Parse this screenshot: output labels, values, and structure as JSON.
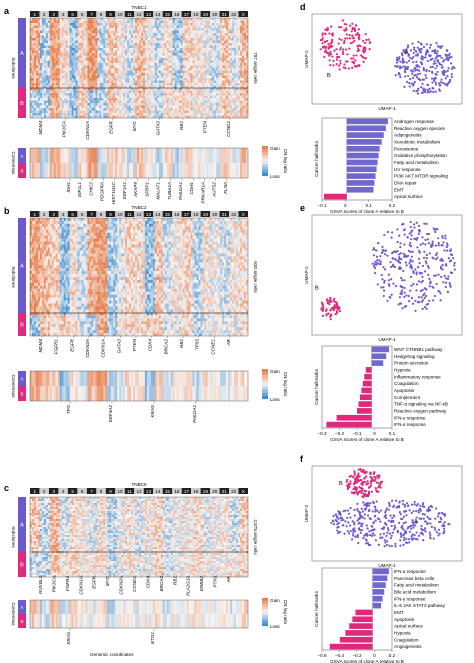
{
  "colors": {
    "gain": "#e8804f",
    "loss": "#3d8fd3",
    "neutral": "#f7f3f1",
    "clone_a": "#6a5acd",
    "clone_b": "#e0287c",
    "bar_purple": "#7268cc",
    "bar_pink": "#e0287c"
  },
  "chromosomes": [
    "1",
    "2",
    "3",
    "4",
    "5",
    "6",
    "7",
    "8",
    "9",
    "10",
    "11",
    "12",
    "13",
    "14",
    "15",
    "16",
    "17",
    "18",
    "19",
    "20",
    "21",
    "22",
    "X"
  ],
  "heatmaps": [
    {
      "letter": "a",
      "title": "TNBC1",
      "cells_label": "787 single cells",
      "subclones_label": "Subclones",
      "consensus_label": "Consensus",
      "clone_a": "A",
      "clone_b": "B",
      "top_genes": [
        "MDM4",
        "PIK3CA",
        "CDKN1A",
        "EGFR",
        "MYC",
        "GATA3",
        "RB1",
        "PTEN",
        "CCND1"
      ],
      "bottom_genes": [
        "IDH1",
        "EIF1L1",
        "CHIC2",
        "PDGFRA",
        "HIST1H1C",
        "EEF1A1",
        "AKAP9",
        "SFRP1",
        "MALAT1",
        "TUBA1A",
        "PHLDA1",
        "CDH1",
        "PRKAR1A",
        "AUTS2",
        "FLNA"
      ],
      "legend_title": "CN log ratio",
      "legend_gain": "Gain",
      "legend_loss": "Loss"
    },
    {
      "letter": "b",
      "title": "TNBC2",
      "cells_label": "620 single cells",
      "subclones_label": "Subclones",
      "consensus_label": "Consensus",
      "clone_a": "A",
      "clone_b": "B",
      "top_genes": [
        "MDM4",
        "FGFR1",
        "EGFR",
        "CDKN2A",
        "CDKN1A",
        "GATA3",
        "PTEN",
        "CDK4",
        "BRCA2",
        "RB1",
        "TP53",
        "CCNE1",
        "AR"
      ],
      "bottom_genes": [
        "TFG",
        "EEF4A2",
        "KRAS",
        "PHLDA1"
      ],
      "legend_title": "CN log ratio",
      "legend_gain": "Gain",
      "legend_loss": "Loss"
    },
    {
      "letter": "c",
      "title": "TNBC5",
      "cells_label": "2,875 single cells",
      "subclones_label": "Subclones",
      "consensus_label": "Consensus",
      "clone_a": "A",
      "clone_b": "B",
      "top_genes": [
        "RUVBL1",
        "PIK3CA",
        "FGFR4",
        "CDKN1A",
        "EGFR",
        "MYC",
        "CDKN2A",
        "CCND1",
        "CDK4",
        "BRCA2",
        "RB1",
        "PLA2G10",
        "ERBB2",
        "PTK6",
        "AR"
      ],
      "bottom_genes": [
        "KRAS",
        "BTG1"
      ],
      "xaxis": "Genomic coordinates",
      "legend_title": "CN log ratio",
      "legend_gain": "Gain",
      "legend_loss": "Loss"
    }
  ],
  "umaps": [
    {
      "letter": "d",
      "xlabel": "UMAP-1",
      "ylabel": "UMAP-2",
      "label_a": "A",
      "label_b": "B"
    },
    {
      "letter": "e",
      "xlabel": "UMAP-1",
      "ylabel": "UMAP-2",
      "label_a": "A",
      "label_b": "B"
    },
    {
      "letter": "f",
      "xlabel": "UMAP-1",
      "ylabel": "UMAP-2",
      "label_a": "A",
      "label_b": "B"
    }
  ],
  "chart_data": [
    {
      "type": "bar",
      "orientation": "horizontal",
      "ylabel": "Cancer hallmarks",
      "xlabel": "GSVA scores of clone A relative to B",
      "xticks": [
        "−0.1",
        "0",
        "0.1",
        "0.2"
      ],
      "xlim": [
        -0.12,
        0.22
      ],
      "categories": [
        "Androgen response",
        "Reactive oxygen species",
        "Adipogenesis",
        "Xenobiotic metabolism",
        "Peroxisome",
        "Oxidative phosphorylation",
        "Fatty acid metabolism",
        "UV response",
        "PI3K AKT MTOR signaling",
        "DNA repair",
        "EMT",
        "Apical surface"
      ],
      "values": [
        0.2,
        0.19,
        0.18,
        0.17,
        0.16,
        0.155,
        0.15,
        0.145,
        0.14,
        0.135,
        0.13,
        -0.11
      ]
    },
    {
      "type": "bar",
      "orientation": "horizontal",
      "ylabel": "Cancer hallmarks",
      "xlabel": "GSVA scores of clone A relative to B",
      "xticks": [
        "−0.3",
        "−0.2",
        "−0.1",
        "0",
        "0.1"
      ],
      "xlim": [
        -0.34,
        0.14
      ],
      "categories": [
        "WNT CTNNB1 pathway",
        "Hedgehog signaling",
        "Protein secretion",
        "Hypoxia",
        "Inflammatory response",
        "Coagulation",
        "Apoptosis",
        "Complement",
        "TNF-α signaling via NF-κB",
        "Reactive oxygen pathway",
        "IFN-γ response",
        "IFN-α response"
      ],
      "values": [
        0.12,
        0.1,
        0.08,
        -0.04,
        -0.05,
        -0.06,
        -0.07,
        -0.08,
        -0.09,
        -0.1,
        -0.24,
        -0.31
      ]
    },
    {
      "type": "bar",
      "orientation": "horizontal",
      "ylabel": "Cancer hallmarks",
      "xlabel": "GSVA scores of clone A relative to B",
      "xticks": [
        "−0.6",
        "−0.4",
        "−0.2",
        "0",
        "0.2"
      ],
      "xlim": [
        -0.65,
        0.25
      ],
      "categories": [
        "IFN-α response",
        "Pancreas beta cells",
        "Fatty acid metabolism",
        "Bile acid metabolism",
        "IFN-γ response",
        "IL-6 JAK STAT3 pathway",
        "EMT",
        "Apoptosis",
        "Apical surface",
        "Hypoxia",
        "Coagulation",
        "Angiogenesis"
      ],
      "values": [
        0.21,
        0.19,
        0.17,
        0.15,
        0.13,
        0.11,
        -0.22,
        -0.26,
        -0.3,
        -0.35,
        -0.42,
        -0.55
      ]
    }
  ]
}
